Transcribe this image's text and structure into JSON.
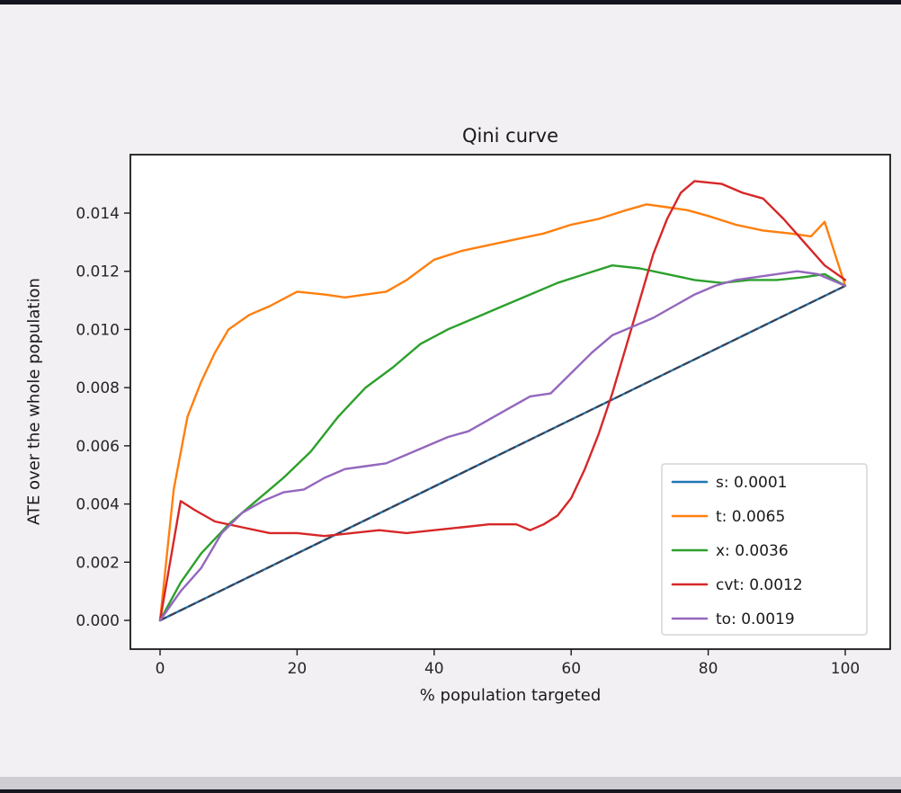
{
  "window": {
    "background": "#f2f0f2",
    "edge_color": "#14141e"
  },
  "chart_data": {
    "type": "line",
    "title": "Qini curve",
    "xlabel": "% population targeted",
    "ylabel": "ATE over the whole population",
    "xlim": [
      -5,
      106
    ],
    "ylim": [
      -0.001,
      0.016
    ],
    "grid": false,
    "legend_position": "lower right",
    "xticks": [
      0,
      20,
      40,
      60,
      80,
      100
    ],
    "xtick_labels": [
      "0",
      "20",
      "40",
      "60",
      "80",
      "100"
    ],
    "yticks": [
      0.0,
      0.002,
      0.004,
      0.006,
      0.008,
      0.01,
      0.012,
      0.014
    ],
    "ytick_labels": [
      "0.000",
      "0.002",
      "0.004",
      "0.006",
      "0.008",
      "0.010",
      "0.012",
      "0.014"
    ],
    "baseline": {
      "name": "random-baseline",
      "color": "#3f3f4e",
      "dash": "7 5",
      "x": [
        0,
        100
      ],
      "y": [
        0.0,
        0.0115
      ]
    },
    "series": [
      {
        "name": "s: 0.0001",
        "color": "#1f77b4",
        "x": [
          0,
          100
        ],
        "y": [
          0.0,
          0.0115
        ]
      },
      {
        "name": "t: 0.0065",
        "color": "#ff7f0e",
        "x": [
          0,
          2,
          4,
          6,
          8,
          10,
          13,
          16,
          20,
          24,
          27,
          30,
          33,
          36,
          40,
          44,
          48,
          52,
          56,
          60,
          64,
          68,
          71,
          74,
          77,
          80,
          84,
          88,
          92,
          95,
          97,
          100
        ],
        "y": [
          0.0,
          0.0045,
          0.007,
          0.0082,
          0.0092,
          0.01,
          0.0105,
          0.0108,
          0.0113,
          0.0112,
          0.0111,
          0.0112,
          0.0113,
          0.0117,
          0.0124,
          0.0127,
          0.0129,
          0.0131,
          0.0133,
          0.0136,
          0.0138,
          0.0141,
          0.0143,
          0.0142,
          0.0141,
          0.0139,
          0.0136,
          0.0134,
          0.0133,
          0.0132,
          0.0137,
          0.0115
        ]
      },
      {
        "name": "x: 0.0036",
        "color": "#2ca02c",
        "x": [
          0,
          3,
          6,
          10,
          14,
          18,
          22,
          26,
          30,
          34,
          38,
          42,
          46,
          50,
          54,
          58,
          62,
          66,
          70,
          74,
          78,
          82,
          86,
          90,
          94,
          97,
          100
        ],
        "y": [
          0.0,
          0.0013,
          0.0023,
          0.0033,
          0.0041,
          0.0049,
          0.0058,
          0.007,
          0.008,
          0.0087,
          0.0095,
          0.01,
          0.0104,
          0.0108,
          0.0112,
          0.0116,
          0.0119,
          0.0122,
          0.0121,
          0.0119,
          0.0117,
          0.0116,
          0.0117,
          0.0117,
          0.0118,
          0.0119,
          0.0115
        ]
      },
      {
        "name": "cvt: 0.0012",
        "color": "#d62728",
        "x": [
          0,
          3,
          5,
          8,
          12,
          16,
          20,
          24,
          28,
          32,
          36,
          40,
          44,
          48,
          52,
          54,
          56,
          58,
          60,
          62,
          64,
          66,
          68,
          70,
          72,
          74,
          76,
          78,
          82,
          85,
          88,
          91,
          94,
          97,
          100
        ],
        "y": [
          0.0,
          0.0041,
          0.0038,
          0.0034,
          0.0032,
          0.003,
          0.003,
          0.0029,
          0.003,
          0.0031,
          0.003,
          0.0031,
          0.0032,
          0.0033,
          0.0033,
          0.0031,
          0.0033,
          0.0036,
          0.0042,
          0.0052,
          0.0064,
          0.0078,
          0.0094,
          0.011,
          0.0126,
          0.0138,
          0.0147,
          0.0151,
          0.015,
          0.0147,
          0.0145,
          0.0138,
          0.013,
          0.0122,
          0.0117
        ]
      },
      {
        "name": "to: 0.0019",
        "color": "#9467bd",
        "x": [
          0,
          3,
          6,
          9,
          12,
          15,
          18,
          21,
          24,
          27,
          30,
          33,
          36,
          39,
          42,
          45,
          48,
          51,
          54,
          57,
          60,
          63,
          66,
          69,
          72,
          75,
          78,
          81,
          84,
          87,
          90,
          93,
          96,
          100
        ],
        "y": [
          0.0,
          0.001,
          0.0018,
          0.003,
          0.0037,
          0.0041,
          0.0044,
          0.0045,
          0.0049,
          0.0052,
          0.0053,
          0.0054,
          0.0057,
          0.006,
          0.0063,
          0.0065,
          0.0069,
          0.0073,
          0.0077,
          0.0078,
          0.0085,
          0.0092,
          0.0098,
          0.0101,
          0.0104,
          0.0108,
          0.0112,
          0.0115,
          0.0117,
          0.0118,
          0.0119,
          0.012,
          0.0119,
          0.0115
        ]
      }
    ]
  }
}
